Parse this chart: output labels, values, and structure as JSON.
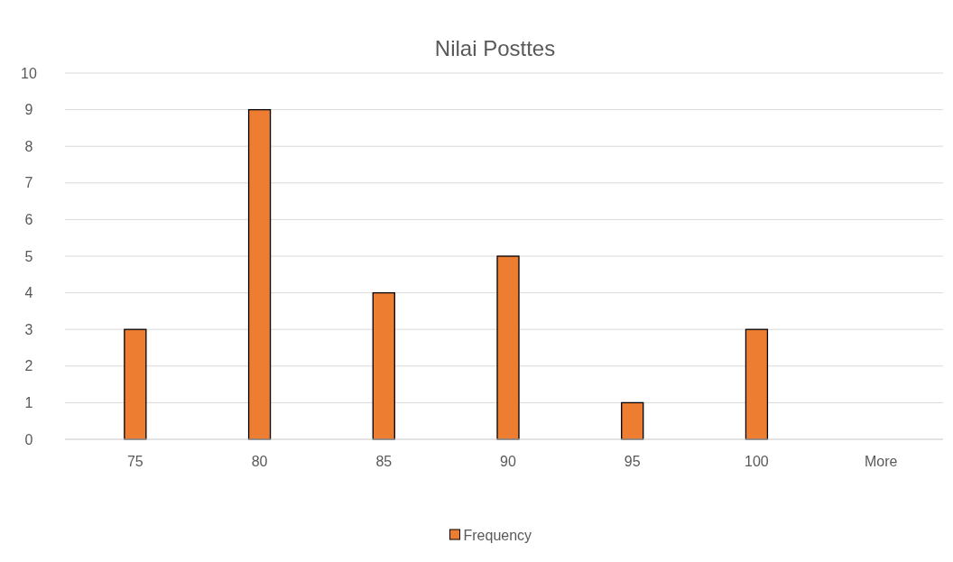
{
  "chart_data": {
    "type": "bar",
    "title": "Nilai Posttes",
    "categories": [
      "75",
      "80",
      "85",
      "90",
      "95",
      "100",
      "More"
    ],
    "series": [
      {
        "name": "Frequency",
        "color": "#ed7d31",
        "values": [
          3,
          9,
          4,
          5,
          1,
          3,
          0
        ]
      }
    ],
    "ylim": [
      0,
      10
    ],
    "yticks": [
      0,
      1,
      2,
      3,
      4,
      5,
      6,
      7,
      8,
      9,
      10
    ],
    "grid": "y",
    "legend": "bottom"
  }
}
